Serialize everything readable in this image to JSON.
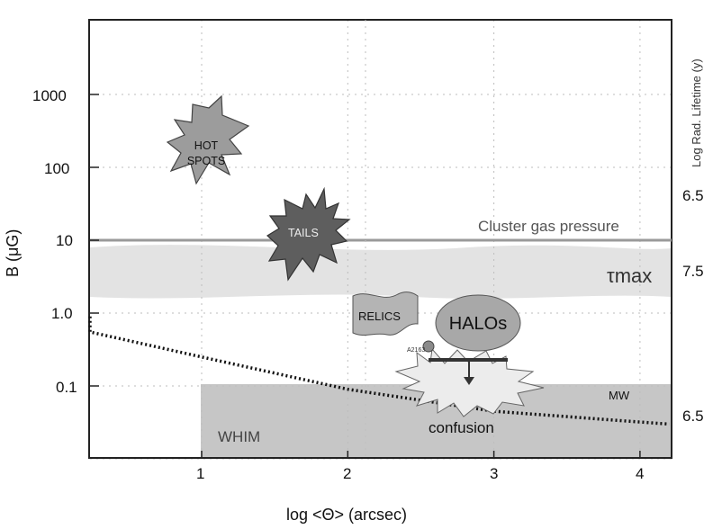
{
  "chart_data": {
    "type": "scatter",
    "xlabel": "log <Θ> (arcsec)",
    "ylabel": "B (μG)",
    "y2label": "Log Rad. Lifetime (y)",
    "x_ticks": [
      "1",
      "2",
      "3",
      "4"
    ],
    "y_ticks": [
      "1000",
      "100",
      "10",
      "1.0",
      "0.1"
    ],
    "y2_ticks": [
      "6.5",
      "7.5",
      "6.5"
    ],
    "yscale": "log",
    "grid": true,
    "regions": [
      {
        "label": "HOT SPOTS",
        "x": 1.0,
        "y": 130
      },
      {
        "label": "TAILS",
        "x": 1.7,
        "y": 8
      },
      {
        "label": "RELICS",
        "x": 2.5,
        "y": 1.0
      },
      {
        "label": "HALOs",
        "x": 2.8,
        "y": 0.8
      },
      {
        "label": "A2163",
        "x": 2.6,
        "y": 0.4
      }
    ],
    "annotations": {
      "cluster": "Cluster gas pressure",
      "tau": "τmax",
      "mw": "MW",
      "whim": "WHIM",
      "confusion": "confusion"
    },
    "cluster_gas_pressure_B": 10,
    "tau_band_B": [
      1.6,
      8
    ],
    "confusion_region": {
      "x_min": 1.0,
      "y_max": 0.1
    },
    "confusion_limit_curve": {
      "x": [
        -0.75,
        0.0,
        1.0,
        2.0,
        3.0,
        4.0,
        4.2
      ],
      "y": [
        0.9,
        0.55,
        0.25,
        0.09,
        0.045,
        0.032,
        0.03
      ]
    }
  },
  "colors": {
    "band": "#e3e3e3",
    "confusion_box": "#c6c6c6",
    "hotspots": "#9c9c9c",
    "tails": "#5e5e5e",
    "relics": "#b4b4b4",
    "halos": "#a8a8a8",
    "text_gray": "#555555"
  }
}
